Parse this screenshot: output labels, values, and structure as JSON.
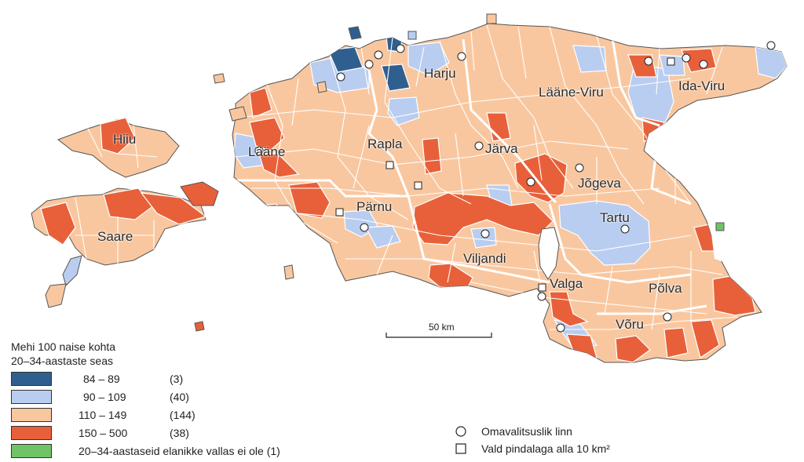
{
  "colors": {
    "dark_blue": "#2f5f8f",
    "light_blue": "#b9cdf0",
    "peach": "#f9c79f",
    "orange": "#e8603a",
    "green": "#6fc466",
    "border": "#ffffff",
    "outline": "#555555"
  },
  "regions": [
    {
      "name": "Harju"
    },
    {
      "name": "Lääne-Viru"
    },
    {
      "name": "Ida-Viru"
    },
    {
      "name": "Hiiu"
    },
    {
      "name": "Lääne"
    },
    {
      "name": "Rapla"
    },
    {
      "name": "Järva"
    },
    {
      "name": "Jõgeva"
    },
    {
      "name": "Pärnu"
    },
    {
      "name": "Tartu"
    },
    {
      "name": "Saare"
    },
    {
      "name": "Viljandi"
    },
    {
      "name": "Valga"
    },
    {
      "name": "Põlva"
    },
    {
      "name": "Võru"
    }
  ],
  "legend": {
    "title_line1": "Mehi 100 naise kohta",
    "title_line2": "20–34-aastaste seas",
    "classes": [
      {
        "range": "84 –  89",
        "count": "(3)",
        "color_key": "dark_blue"
      },
      {
        "range": "90 – 109",
        "count": "(40)",
        "color_key": "light_blue"
      },
      {
        "range": "110 – 149",
        "count": "(144)",
        "color_key": "peach"
      },
      {
        "range": "150 – 500",
        "count": "(38)",
        "color_key": "orange"
      }
    ],
    "no_data": {
      "label": "20–34-aastaseid elanikke vallas ei ole (1)",
      "color_key": "green"
    }
  },
  "symbols": [
    {
      "icon": "circle-icon",
      "label": "Omavalitsuslik linn"
    },
    {
      "icon": "square-icon",
      "label": "Vald pindalaga alla 10 km²"
    }
  ],
  "scale_bar": {
    "label": "50 km"
  }
}
